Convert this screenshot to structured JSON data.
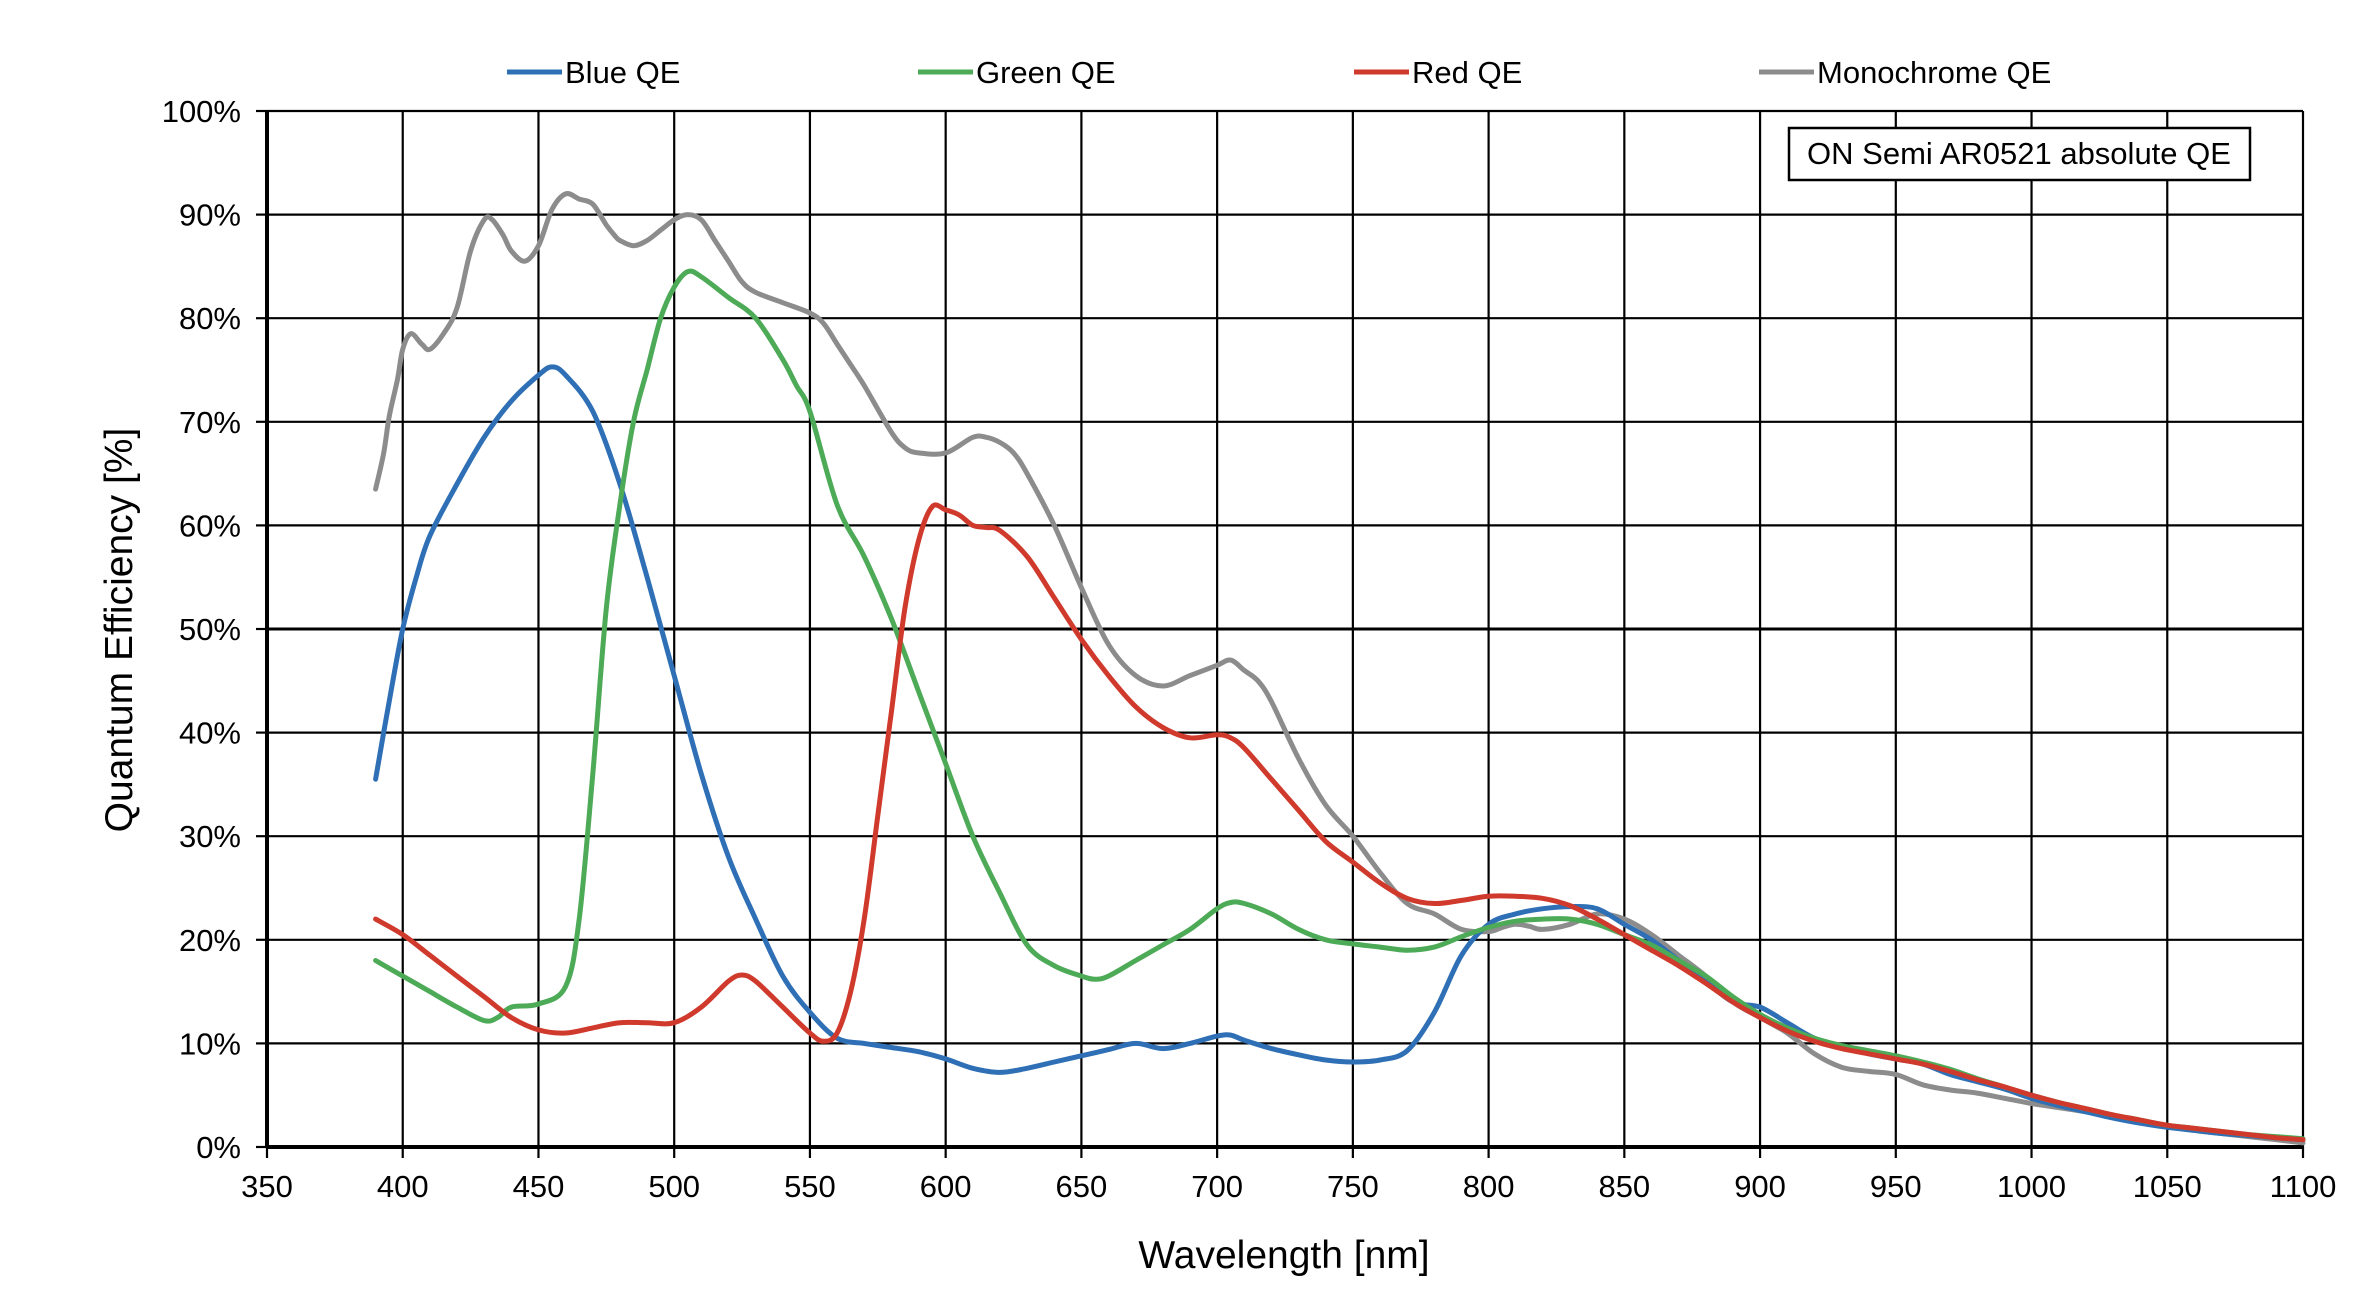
{
  "chart_data": {
    "type": "line",
    "title": "",
    "xlabel": "Wavelength [nm]",
    "ylabel": "Quantum Efficiency [%]",
    "xlim": [
      350,
      1100
    ],
    "ylim": [
      0,
      100
    ],
    "xticks": [
      350,
      400,
      450,
      500,
      550,
      600,
      650,
      700,
      750,
      800,
      850,
      900,
      950,
      1000,
      1050,
      1100
    ],
    "yticks": [
      0,
      10,
      20,
      30,
      40,
      50,
      60,
      70,
      80,
      90,
      100
    ],
    "ytick_labels": [
      "0%",
      "10%",
      "20%",
      "30%",
      "40%",
      "50%",
      "60%",
      "70%",
      "80%",
      "90%",
      "100%"
    ],
    "grid": true,
    "legend_position": "top",
    "annotation": "ON Semi AR0521 absolute QE",
    "series": [
      {
        "name": "Blue QE",
        "color": "#2E6FB5",
        "x": [
          390,
          395,
          400,
          405,
          410,
          420,
          430,
          440,
          450,
          455,
          460,
          470,
          480,
          490,
          500,
          510,
          520,
          530,
          540,
          550,
          560,
          570,
          575,
          580,
          590,
          600,
          610,
          620,
          630,
          640,
          650,
          660,
          670,
          680,
          690,
          700,
          705,
          710,
          720,
          730,
          740,
          750,
          760,
          770,
          780,
          790,
          800,
          810,
          820,
          830,
          840,
          850,
          860,
          870,
          880,
          890,
          900,
          910,
          920,
          930,
          940,
          950,
          960,
          970,
          980,
          990,
          1000,
          1010,
          1020,
          1030,
          1040,
          1050,
          1060,
          1070,
          1080,
          1090,
          1100
        ],
        "values": [
          35.5,
          43,
          50,
          55,
          59,
          64,
          68.5,
          72,
          74.5,
          75.3,
          74.5,
          71,
          64,
          55,
          45.5,
          36,
          28,
          22,
          16.5,
          13,
          10.5,
          10,
          9.8,
          9.6,
          9.2,
          8.5,
          7.6,
          7.2,
          7.6,
          8.2,
          8.8,
          9.4,
          10,
          9.5,
          10,
          10.7,
          10.8,
          10.3,
          9.5,
          8.9,
          8.4,
          8.2,
          8.4,
          9.3,
          13,
          18.5,
          21.5,
          22.5,
          23,
          23.2,
          23,
          21.5,
          20,
          18,
          16,
          14,
          13.5,
          12,
          10.5,
          9.7,
          9,
          8.5,
          8,
          7,
          6.3,
          5.6,
          4.7,
          4,
          3.4,
          2.8,
          2.3,
          1.9,
          1.6,
          1.3,
          1.1,
          0.9,
          0.7
        ]
      },
      {
        "name": "Green QE",
        "color": "#4DAA57",
        "x": [
          390,
          400,
          410,
          420,
          430,
          435,
          440,
          450,
          460,
          465,
          470,
          475,
          480,
          485,
          490,
          495,
          500,
          505,
          510,
          520,
          530,
          540,
          545,
          550,
          560,
          570,
          580,
          590,
          600,
          610,
          620,
          630,
          640,
          650,
          655,
          660,
          670,
          680,
          690,
          700,
          705,
          710,
          720,
          730,
          740,
          750,
          760,
          770,
          780,
          790,
          800,
          810,
          820,
          830,
          840,
          850,
          860,
          870,
          880,
          890,
          900,
          910,
          920,
          930,
          940,
          950,
          960,
          970,
          980,
          990,
          1000,
          1010,
          1020,
          1030,
          1040,
          1050,
          1060,
          1070,
          1080,
          1090,
          1100
        ],
        "values": [
          18,
          16.5,
          15,
          13.5,
          12.2,
          12.5,
          13.5,
          13.8,
          15.5,
          22,
          36,
          52,
          62,
          70,
          75,
          80,
          83,
          84.5,
          84,
          82,
          80,
          76,
          73.5,
          71,
          62,
          57,
          51,
          44,
          37,
          30,
          24.5,
          19.5,
          17.5,
          16.5,
          16.2,
          16.5,
          18,
          19.5,
          21,
          23,
          23.6,
          23.5,
          22.5,
          21,
          20,
          19.6,
          19.3,
          19,
          19.3,
          20.3,
          21.2,
          21.8,
          22,
          22,
          21.5,
          20.5,
          19.5,
          18,
          16.5,
          14.5,
          12.8,
          11.5,
          10.5,
          9.8,
          9.3,
          8.8,
          8.2,
          7.5,
          6.6,
          5.8,
          5,
          4.3,
          3.7,
          3.1,
          2.6,
          2.1,
          1.8,
          1.5,
          1.2,
          1,
          0.8
        ]
      },
      {
        "name": "Red QE",
        "color": "#D03A2C",
        "x": [
          390,
          400,
          410,
          420,
          430,
          440,
          450,
          460,
          470,
          480,
          490,
          500,
          510,
          520,
          525,
          530,
          540,
          550,
          555,
          560,
          565,
          570,
          575,
          580,
          585,
          590,
          595,
          600,
          605,
          610,
          615,
          620,
          630,
          640,
          650,
          660,
          670,
          680,
          690,
          700,
          705,
          710,
          720,
          730,
          740,
          750,
          760,
          770,
          780,
          790,
          800,
          810,
          820,
          830,
          840,
          850,
          860,
          870,
          880,
          890,
          900,
          910,
          920,
          930,
          940,
          950,
          960,
          970,
          980,
          990,
          1000,
          1010,
          1020,
          1030,
          1040,
          1050,
          1060,
          1070,
          1080,
          1090,
          1100
        ],
        "values": [
          22,
          20.5,
          18.5,
          16.5,
          14.5,
          12.5,
          11.3,
          11,
          11.5,
          12,
          12,
          12,
          13.5,
          16,
          16.6,
          16,
          13.5,
          11,
          10.2,
          11,
          15,
          22,
          32,
          42,
          52,
          58.5,
          61.8,
          61.5,
          61,
          60,
          59.8,
          59.5,
          57,
          53,
          49,
          45.5,
          42.5,
          40.5,
          39.5,
          39.8,
          39.5,
          38.5,
          35.5,
          32.5,
          29.5,
          27.5,
          25.5,
          24,
          23.5,
          23.8,
          24.2,
          24.2,
          24,
          23.3,
          22,
          20.5,
          19,
          17.5,
          15.8,
          14,
          12.5,
          11.2,
          10.2,
          9.5,
          9,
          8.5,
          8,
          7.3,
          6.5,
          5.8,
          5,
          4.3,
          3.7,
          3.1,
          2.6,
          2.1,
          1.8,
          1.5,
          1.2,
          0.9,
          0.7
        ]
      },
      {
        "name": "Monochrome QE",
        "color": "#8C8C8C",
        "x": [
          390,
          393,
          395,
          398,
          400,
          403,
          407,
          410,
          415,
          420,
          425,
          430,
          433,
          437,
          440,
          445,
          450,
          455,
          460,
          465,
          470,
          475,
          478,
          480,
          485,
          490,
          495,
          500,
          505,
          510,
          515,
          520,
          525,
          530,
          540,
          550,
          555,
          560,
          565,
          570,
          580,
          585,
          590,
          600,
          610,
          615,
          620,
          625,
          630,
          640,
          650,
          660,
          670,
          680,
          690,
          700,
          705,
          710,
          715,
          720,
          730,
          740,
          750,
          760,
          770,
          780,
          790,
          800,
          805,
          810,
          815,
          820,
          830,
          840,
          850,
          860,
          870,
          880,
          890,
          900,
          910,
          920,
          930,
          940,
          950,
          960,
          970,
          980,
          990,
          1000,
          1010,
          1020,
          1030,
          1040,
          1050,
          1060,
          1070,
          1080,
          1090,
          1100
        ],
        "values": [
          63.5,
          67,
          70.5,
          74,
          77,
          78.5,
          77.5,
          77,
          78.5,
          81,
          86.5,
          89.5,
          89.5,
          88,
          86.5,
          85.5,
          87,
          90.5,
          92,
          91.5,
          91,
          89,
          88,
          87.5,
          87,
          87.5,
          88.5,
          89.5,
          90,
          89.5,
          87.5,
          85.5,
          83.5,
          82.5,
          81.5,
          80.5,
          79.5,
          77.5,
          75.5,
          73.5,
          69,
          67.5,
          67,
          67,
          68.5,
          68.5,
          68,
          67,
          65,
          60,
          54,
          48.5,
          45.5,
          44.5,
          45.5,
          46.5,
          47,
          46,
          45,
          43,
          37.5,
          33,
          30,
          26.5,
          23.5,
          22.5,
          21,
          20.8,
          21.2,
          21.5,
          21.3,
          21,
          21.5,
          22.5,
          22,
          20.5,
          18.5,
          16.5,
          14,
          12.5,
          11,
          9,
          7.7,
          7.3,
          7,
          6,
          5.5,
          5.2,
          4.7,
          4.2,
          3.8,
          3.4,
          3,
          2.5,
          2,
          1.6,
          1.3,
          1,
          0.7,
          0.4
        ]
      }
    ]
  }
}
